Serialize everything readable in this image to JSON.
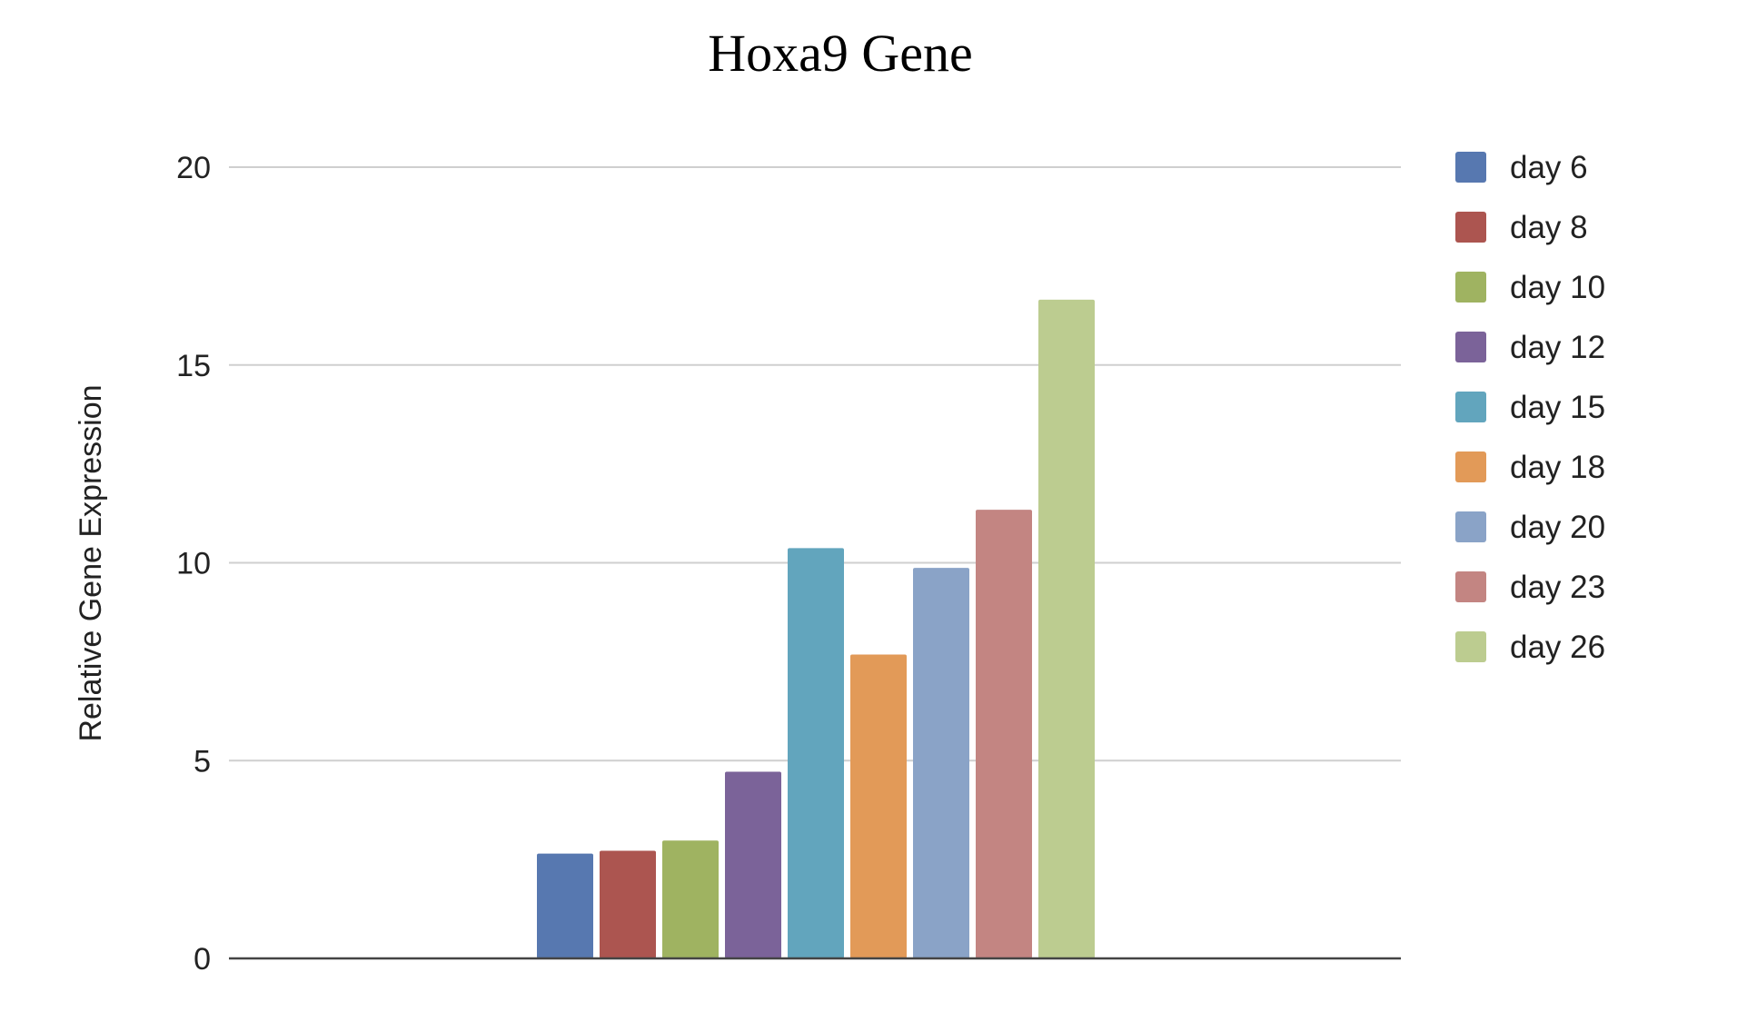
{
  "chart_data": {
    "type": "bar",
    "title": "Hoxa9 Gene",
    "xlabel": "",
    "ylabel": "Relative Gene Expression",
    "ylim": [
      0,
      20
    ],
    "yticks": [
      0,
      5,
      10,
      15,
      20
    ],
    "grid": true,
    "legend_position": "right",
    "categories": [
      ""
    ],
    "series": [
      {
        "name": "day 6",
        "values": [
          2.65
        ],
        "color": "#5778b0"
      },
      {
        "name": "day 8",
        "values": [
          2.72
        ],
        "color": "#ac5550"
      },
      {
        "name": "day 10",
        "values": [
          2.98
        ],
        "color": "#9fb361"
      },
      {
        "name": "day 12",
        "values": [
          4.72
        ],
        "color": "#7b6399"
      },
      {
        "name": "day 15",
        "values": [
          10.37
        ],
        "color": "#62a5bd"
      },
      {
        "name": "day 18",
        "values": [
          7.68
        ],
        "color": "#e29a58"
      },
      {
        "name": "day 20",
        "values": [
          9.87
        ],
        "color": "#8aa3c7"
      },
      {
        "name": "day 23",
        "values": [
          11.34
        ],
        "color": "#c38582"
      },
      {
        "name": "day 26",
        "values": [
          16.65
        ],
        "color": "#bccc90"
      }
    ]
  }
}
